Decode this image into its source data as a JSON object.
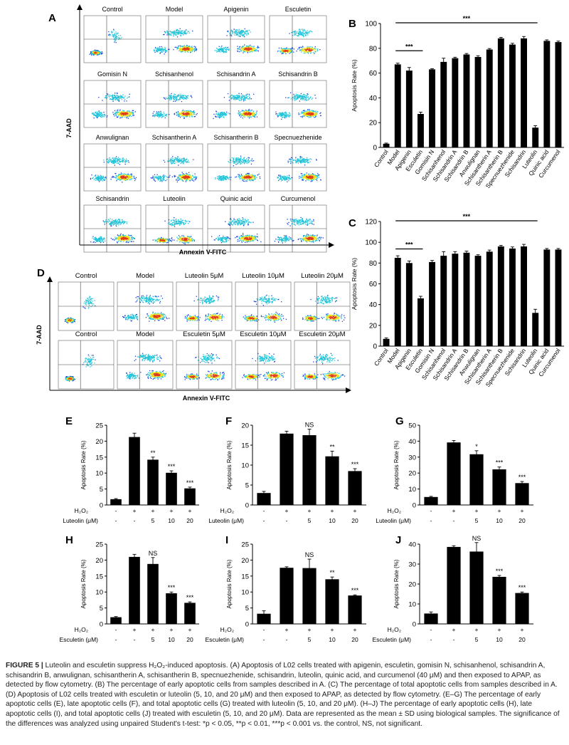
{
  "figure": {
    "caption_label": "FIGURE 5 |",
    "caption_title": "Luteolin and esculetin suppress H₂O₂-induced apoptosis.",
    "caption_body": "(A) Apoptosis of L02 cells treated with apigenin, esculetin, gomisin N, schisanhenol, schisandrin A, schisandrin B, anwulignan, schisantherin A, schisantherin B, specnuezhenide, schisandrin, luteolin, quinic acid, and curcumenol (40 μM) and then exposed to APAP, as detected by flow cytometry. (B) The percentage of early apoptotic cells from samples described in A. (C) The percentage of total apoptotic cells from samples described in A. (D) Apoptosis of L02 cells treated with esculetin or luteolin (5, 10, and 20 μM) and then exposed to APAP, as detected by flow cytometry. (E–G) The percentage of early apoptotic cells (E), late apoptotic cells (F), and total apoptotic cells (G) treated with luteolin (5, 10, and 20 μM). (H–J) The percentage of early apoptotic cells (H), late apoptotic cells (I), and total apoptotic cells (J) treated with esculetin (5, 10, and 20 μM). Data are represented as the mean ± SD using biological samples. The significance of the differences was analyzed using unpaired Student's t-test: *p < 0.05, **p < 0.01, ***p < 0.001 vs. the control, NS, not significant."
  },
  "flow_A": {
    "panel_label": "A",
    "xlabel": "Annexin V-FITC",
    "ylabel": "7-AAD",
    "titles": [
      "Control",
      "Model",
      "Apigenin",
      "Esculetin",
      "Gomisin N",
      "Schisanhenol",
      "Schisandrin A",
      "Schisandrin B",
      "Anwulignan",
      "Schisantherin A",
      "Schisantherin B",
      "Specnuezhenide",
      "Schisandrin",
      "Luteolin",
      "Quinic acid",
      "Curcumenol"
    ]
  },
  "flow_D": {
    "panel_label": "D",
    "xlabel": "Annexin V-FITC",
    "ylabel": "7-AAD",
    "titles": [
      "Control",
      "Model",
      "Luteolin 5μM",
      "Luteolin 10μM",
      "Luteolin 20μM",
      "Control",
      "Model",
      "Esculetin 5μM",
      "Esculetin 10μM",
      "Esculetin 20μM"
    ]
  },
  "colors": {
    "bar": "#000000",
    "axis": "#000000",
    "flow_low": "#1f3fd6",
    "flow_mid": "#21c4d8",
    "flow_high": "#e8e01a",
    "flow_peak": "#e03a1a"
  },
  "chart_data": [
    {
      "label": "B",
      "type": "bar",
      "ylabel": "Apoptosis Rate (%)",
      "ylim": [
        0,
        100
      ],
      "yticks": [
        0,
        20,
        40,
        60,
        80,
        100
      ],
      "categories": [
        "Control",
        "Model",
        "Apigenin",
        "Esculetin",
        "Gomisin N",
        "Schisanhenol",
        "Schisandrin A",
        "Schisandrin B",
        "Anwulignan",
        "Schisantherin A",
        "Schisantherin B",
        "Specnuezhenide",
        "Schisandrin",
        "Luteolin",
        "Quinic acid",
        "Curcumenol"
      ],
      "values": [
        3,
        67,
        62,
        27,
        63,
        69,
        72,
        75,
        73,
        79,
        88,
        83,
        88,
        16,
        86,
        85
      ],
      "errors": [
        0.5,
        1,
        2.5,
        1.5,
        0.5,
        3,
        0.8,
        0.8,
        1,
        0.8,
        0.8,
        1,
        1.5,
        1.5,
        0.8,
        0.8
      ],
      "brackets": [
        {
          "from": 1,
          "to": 3,
          "label": "***"
        },
        {
          "from": 1,
          "to": 13,
          "label": "***"
        }
      ]
    },
    {
      "label": "C",
      "type": "bar",
      "ylabel": "Apoptosis Rate (%)",
      "ylim": [
        0,
        120
      ],
      "yticks": [
        0,
        20,
        40,
        60,
        80,
        100,
        120
      ],
      "categories": [
        "Control",
        "Model",
        "Apigenin",
        "Esculetin",
        "Gomisin N",
        "Schisanhenol",
        "Schisandrin A",
        "Schisandrin B",
        "Anwulignan",
        "Schisantherin A",
        "Schisantherin B",
        "Specnuezhenide",
        "Schisandrin",
        "Luteolin",
        "Quinic acid",
        "Curcumenol"
      ],
      "values": [
        7,
        85,
        80,
        46,
        81,
        87,
        89,
        90,
        87,
        91,
        96,
        94,
        96,
        32,
        93,
        93
      ],
      "errors": [
        1,
        2,
        2,
        2,
        1.5,
        4,
        2,
        1.5,
        1,
        1.5,
        1,
        1.5,
        2,
        3.5,
        1,
        1
      ],
      "brackets": [
        {
          "from": 1,
          "to": 3,
          "label": "***"
        },
        {
          "from": 1,
          "to": 13,
          "label": "***"
        }
      ]
    },
    {
      "label": "E",
      "type": "bar",
      "ylabel": "Apoptosis Rate (%)",
      "ylim": [
        0,
        25
      ],
      "yticks": [
        0,
        5,
        10,
        15,
        20,
        25
      ],
      "values": [
        1.8,
        21.3,
        14.2,
        10.1,
        5.2
      ],
      "errors": [
        0.2,
        1.2,
        0.8,
        0.6,
        0.4
      ],
      "sig": [
        "",
        "",
        "**",
        "***",
        "***"
      ],
      "row1": {
        "label": "H₂O₂",
        "vals": [
          "-",
          "+",
          "+",
          "+",
          "+"
        ]
      },
      "row2": {
        "label": "Luteolin (μM)",
        "vals": [
          "-",
          "-",
          "5",
          "10",
          "20"
        ]
      }
    },
    {
      "label": "F",
      "type": "bar",
      "ylabel": "Apoptosis Rate (%)",
      "ylim": [
        0,
        20
      ],
      "yticks": [
        0,
        5,
        10,
        15,
        20
      ],
      "values": [
        3,
        17.9,
        17.5,
        12.2,
        8.5
      ],
      "errors": [
        0.4,
        0.6,
        1.5,
        1.3,
        0.6
      ],
      "sig": [
        "",
        "",
        "NS",
        "**",
        "***"
      ],
      "row1": {
        "label": "H₂O₂",
        "vals": [
          "-",
          "+",
          "+",
          "+",
          "+"
        ]
      },
      "row2": {
        "label": "Luteolin (μM)",
        "vals": [
          "-",
          "-",
          "5",
          "10",
          "20"
        ]
      }
    },
    {
      "label": "G",
      "type": "bar",
      "ylabel": "Apoptosis Rate (%)",
      "ylim": [
        0,
        50
      ],
      "yticks": [
        0,
        10,
        20,
        30,
        40,
        50
      ],
      "values": [
        5,
        39.2,
        31.8,
        22.3,
        13.7
      ],
      "errors": [
        0.4,
        1.2,
        2.2,
        1.5,
        1
      ],
      "sig": [
        "",
        "",
        "*",
        "***",
        "***"
      ],
      "row1": {
        "label": "H₂O₂",
        "vals": [
          "-",
          "+",
          "+",
          "+",
          "+"
        ]
      },
      "row2": {
        "label": "Luteolin (μM)",
        "vals": [
          "-",
          "-",
          "5",
          "10",
          "20"
        ]
      }
    },
    {
      "label": "H",
      "type": "bar",
      "ylabel": "Apoptosis Rate (%)",
      "ylim": [
        0,
        25
      ],
      "yticks": [
        0,
        5,
        10,
        15,
        20,
        25
      ],
      "values": [
        2.1,
        21,
        18.8,
        9.6,
        6.6
      ],
      "errors": [
        0.2,
        0.8,
        2,
        0.4,
        0.3
      ],
      "sig": [
        "",
        "",
        "NS",
        "***",
        "***"
      ],
      "row1": {
        "label": "H₂O₂",
        "vals": [
          "-",
          "+",
          "+",
          "+",
          "+"
        ]
      },
      "row2": {
        "label": "Esculetin (μM)",
        "vals": [
          "-",
          "-",
          "5",
          "10",
          "20"
        ]
      }
    },
    {
      "label": "I",
      "type": "bar",
      "ylabel": "Apoptosis Rate (%)",
      "ylim": [
        0,
        25
      ],
      "yticks": [
        0,
        5,
        10,
        15,
        20,
        25
      ],
      "values": [
        3.2,
        17.6,
        17.5,
        14,
        8.9
      ],
      "errors": [
        0.9,
        0.3,
        2.8,
        0.7,
        0.2
      ],
      "sig": [
        "",
        "",
        "NS",
        "**",
        "***"
      ],
      "row1": {
        "label": "H₂O₂",
        "vals": [
          "-",
          "+",
          "+",
          "+",
          "+"
        ]
      },
      "row2": {
        "label": "Esculetin (μM)",
        "vals": [
          "-",
          "-",
          "5",
          "10",
          "20"
        ]
      }
    },
    {
      "label": "J",
      "type": "bar",
      "ylabel": "Apoptosis Rate (%)",
      "ylim": [
        0,
        40
      ],
      "yticks": [
        0,
        10,
        20,
        30,
        40
      ],
      "values": [
        5.2,
        38.6,
        36.3,
        23.6,
        15.5
      ],
      "errors": [
        0.8,
        0.6,
        4.5,
        0.7,
        0.5
      ],
      "sig": [
        "",
        "",
        "NS",
        "***",
        "***"
      ],
      "row1": {
        "label": "H₂O₂",
        "vals": [
          "-",
          "+",
          "+",
          "+",
          "+"
        ]
      },
      "row2": {
        "label": "Esculetin (μM)",
        "vals": [
          "-",
          "-",
          "5",
          "10",
          "20"
        ]
      }
    }
  ]
}
